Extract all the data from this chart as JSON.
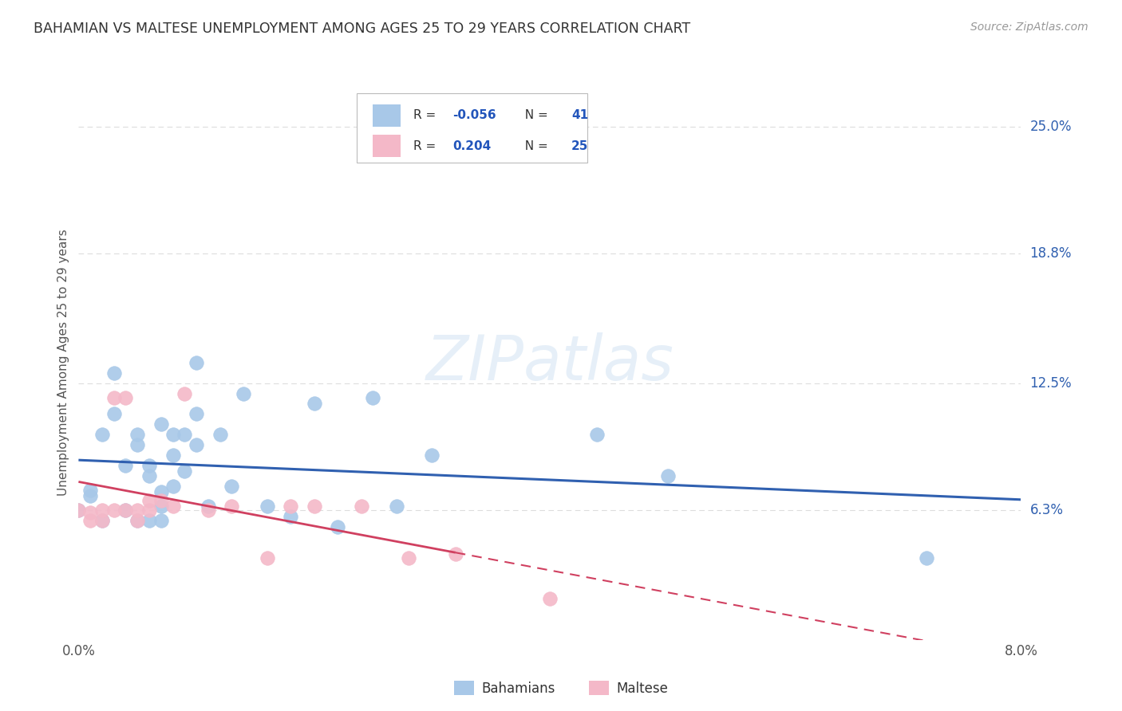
{
  "title": "BAHAMIAN VS MALTESE UNEMPLOYMENT AMONG AGES 25 TO 29 YEARS CORRELATION CHART",
  "source": "Source: ZipAtlas.com",
  "ylabel": "Unemployment Among Ages 25 to 29 years",
  "xlim": [
    0.0,
    0.08
  ],
  "ylim": [
    0.0,
    0.27
  ],
  "xtick_positions": [
    0.0,
    0.01,
    0.02,
    0.03,
    0.04,
    0.05,
    0.06,
    0.07,
    0.08
  ],
  "xtick_labels": [
    "0.0%",
    "",
    "",
    "",
    "",
    "",
    "",
    "",
    "8.0%"
  ],
  "ytick_vals_right": [
    0.063,
    0.125,
    0.188,
    0.25
  ],
  "ytick_labels_right": [
    "6.3%",
    "12.5%",
    "18.8%",
    "25.0%"
  ],
  "color_blue": "#a8c8e8",
  "color_pink": "#f4b8c8",
  "color_blue_line": "#3060b0",
  "color_pink_line": "#d04060",
  "color_blue_label": "#3060b0",
  "color_title": "#333333",
  "color_source": "#999999",
  "background_color": "#ffffff",
  "grid_color": "#dddddd",
  "watermark": "ZIPatlas",
  "legend_r1": "-0.056",
  "legend_n1": "41",
  "legend_r2": "0.204",
  "legend_n2": "25",
  "bahamians_x": [
    0.0,
    0.001,
    0.001,
    0.002,
    0.002,
    0.003,
    0.003,
    0.004,
    0.004,
    0.005,
    0.005,
    0.005,
    0.006,
    0.006,
    0.006,
    0.007,
    0.007,
    0.007,
    0.007,
    0.008,
    0.008,
    0.008,
    0.009,
    0.009,
    0.01,
    0.01,
    0.01,
    0.011,
    0.012,
    0.013,
    0.014,
    0.016,
    0.018,
    0.02,
    0.022,
    0.025,
    0.027,
    0.03,
    0.044,
    0.05,
    0.072
  ],
  "bahamians_y": [
    0.063,
    0.07,
    0.073,
    0.058,
    0.1,
    0.13,
    0.11,
    0.063,
    0.085,
    0.058,
    0.095,
    0.1,
    0.058,
    0.08,
    0.085,
    0.058,
    0.065,
    0.072,
    0.105,
    0.075,
    0.09,
    0.1,
    0.082,
    0.1,
    0.095,
    0.11,
    0.135,
    0.065,
    0.1,
    0.075,
    0.12,
    0.065,
    0.06,
    0.115,
    0.055,
    0.118,
    0.065,
    0.09,
    0.1,
    0.08,
    0.04
  ],
  "maltese_x": [
    0.0,
    0.001,
    0.001,
    0.002,
    0.002,
    0.003,
    0.003,
    0.004,
    0.004,
    0.005,
    0.005,
    0.006,
    0.006,
    0.007,
    0.008,
    0.009,
    0.011,
    0.013,
    0.016,
    0.018,
    0.02,
    0.024,
    0.028,
    0.032,
    0.04
  ],
  "maltese_y": [
    0.063,
    0.058,
    0.062,
    0.058,
    0.063,
    0.063,
    0.118,
    0.063,
    0.118,
    0.058,
    0.063,
    0.063,
    0.068,
    0.068,
    0.065,
    0.12,
    0.063,
    0.065,
    0.04,
    0.065,
    0.065,
    0.065,
    0.04,
    0.042,
    0.02
  ]
}
